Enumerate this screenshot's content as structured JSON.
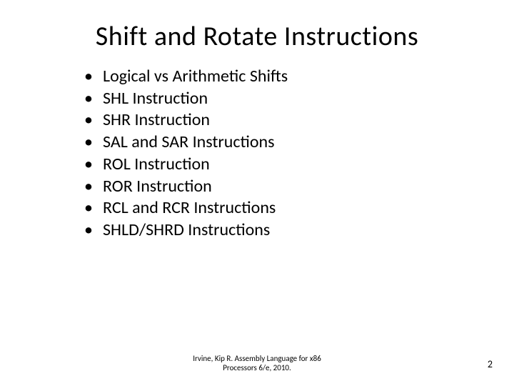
{
  "slide": {
    "title": "Shift and Rotate Instructions",
    "title_fontsize": 38,
    "title_color": "#000000",
    "bullets": [
      "Logical vs Arithmetic Shifts",
      "SHL Instruction",
      "SHR Instruction",
      "SAL and SAR Instructions",
      "ROL Instruction",
      "ROR Instruction",
      "RCL and RCR Instructions",
      "SHLD/SHRD Instructions"
    ],
    "bullet_fontsize": 24,
    "bullet_color": "#000000",
    "footer_line1": "Irvine, Kip R. Assembly Language for x86",
    "footer_line2": "Processors 6/e, 2010.",
    "footer_fontsize": 11,
    "page_number": "2",
    "background_color": "#ffffff"
  }
}
